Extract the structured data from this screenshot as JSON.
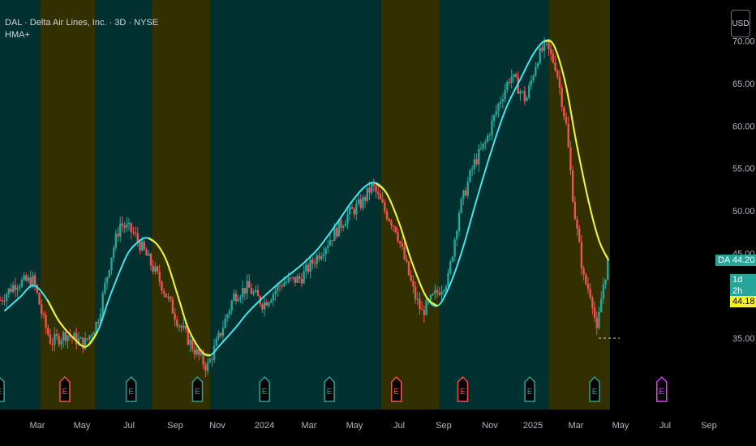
{
  "legend": {
    "title": "DAL · Delta Air Lines, Inc. · 3D · NYSE",
    "indicator": "HMA+"
  },
  "currency_button": "USD",
  "price_tags": {
    "symbol": "DAL",
    "last_price": "44.20",
    "countdown": "1d 2h",
    "hma_value": "44.18"
  },
  "colors": {
    "bg_teal": "#00302f",
    "bg_olive": "#333000",
    "candle_up": "#26a69a",
    "candle_down": "#ef5350",
    "hma_up": "#3fe6ee",
    "hma_down": "#f5f02a",
    "earnings_green": "#26a69a",
    "earnings_red": "#ef5350",
    "earnings_future": "#e040fb"
  },
  "chart_data": {
    "type": "candlestick",
    "title": "DAL · Delta Air Lines, Inc. · 3D · NYSE",
    "x_tick_labels": [
      "Mar",
      "May",
      "Jul",
      "Sep",
      "Nov",
      "2024",
      "Mar",
      "May",
      "Jul",
      "Sep",
      "Nov",
      "2025",
      "Mar",
      "May",
      "Jul",
      "Sep"
    ],
    "y_tick_labels": [
      "35.00",
      "40.00",
      "45.00",
      "50.00",
      "55.00",
      "60.00",
      "65.00",
      "70.00"
    ],
    "ylim": [
      29,
      72
    ],
    "xlim": [
      "2023-01-14",
      "2025-10-04"
    ],
    "last_close": 44.2,
    "hma_last": 44.18,
    "hma_series": {
      "name": "HMA+",
      "points": [
        [
          "2023-01-20",
          38.2
        ],
        [
          "2023-02-10",
          39.8
        ],
        [
          "2023-03-01",
          41.2
        ],
        [
          "2023-03-20",
          39.5
        ],
        [
          "2023-04-05",
          37.0
        ],
        [
          "2023-04-25",
          35.0
        ],
        [
          "2023-05-12",
          34.0
        ],
        [
          "2023-05-28",
          35.8
        ],
        [
          "2023-06-12",
          39.5
        ],
        [
          "2023-06-28",
          43.0
        ],
        [
          "2023-07-10",
          45.2
        ],
        [
          "2023-07-25",
          46.5
        ],
        [
          "2023-08-05",
          46.8
        ],
        [
          "2023-08-18",
          46.0
        ],
        [
          "2023-08-31",
          44.0
        ],
        [
          "2023-09-15",
          40.0
        ],
        [
          "2023-09-30",
          36.0
        ],
        [
          "2023-10-18",
          33.4
        ],
        [
          "2023-10-30",
          33.0
        ],
        [
          "2023-11-12",
          34.2
        ],
        [
          "2023-12-01",
          36.0
        ],
        [
          "2023-12-20",
          38.0
        ],
        [
          "2024-01-10",
          39.8
        ],
        [
          "2024-02-05",
          41.8
        ],
        [
          "2024-03-01",
          43.5
        ],
        [
          "2024-03-25",
          45.5
        ],
        [
          "2024-04-20",
          48.5
        ],
        [
          "2024-05-10",
          51.0
        ],
        [
          "2024-05-28",
          52.8
        ],
        [
          "2024-06-12",
          53.3
        ],
        [
          "2024-06-28",
          52.0
        ],
        [
          "2024-07-15",
          48.5
        ],
        [
          "2024-08-01",
          44.0
        ],
        [
          "2024-08-20",
          40.0
        ],
        [
          "2024-09-05",
          38.8
        ],
        [
          "2024-09-20",
          40.8
        ],
        [
          "2024-10-08",
          45.0
        ],
        [
          "2024-10-28",
          51.0
        ],
        [
          "2024-11-18",
          57.0
        ],
        [
          "2024-12-08",
          62.0
        ],
        [
          "2024-12-28",
          65.5
        ],
        [
          "2025-01-15",
          68.5
        ],
        [
          "2025-01-30",
          70.0
        ],
        [
          "2025-02-12",
          69.5
        ],
        [
          "2025-02-28",
          65.0
        ],
        [
          "2025-03-15",
          58.0
        ],
        [
          "2025-04-01",
          51.0
        ],
        [
          "2025-04-15",
          46.5
        ],
        [
          "2025-04-28",
          44.18
        ]
      ]
    },
    "shaded_regions": [
      {
        "from": "2023-01-14",
        "to": "2023-03-10",
        "trend": "up"
      },
      {
        "from": "2023-03-10",
        "to": "2023-05-25",
        "trend": "down"
      },
      {
        "from": "2023-05-25",
        "to": "2023-08-10",
        "trend": "up"
      },
      {
        "from": "2023-08-10",
        "to": "2023-10-30",
        "trend": "down"
      },
      {
        "from": "2023-10-30",
        "to": "2024-06-20",
        "trend": "up"
      },
      {
        "from": "2024-06-20",
        "to": "2024-09-08",
        "trend": "down"
      },
      {
        "from": "2024-09-08",
        "to": "2025-02-05",
        "trend": "up"
      },
      {
        "from": "2025-02-05",
        "to": "2025-04-30",
        "trend": "down"
      }
    ],
    "price_path_points": [
      [
        "2023-01-14",
        39.5
      ],
      [
        "2023-02-05",
        41.5
      ],
      [
        "2023-03-01",
        41.8
      ],
      [
        "2023-03-15",
        37.0
      ],
      [
        "2023-03-25",
        34.5
      ],
      [
        "2023-04-15",
        35.5
      ],
      [
        "2023-05-10",
        34.3
      ],
      [
        "2023-05-28",
        37.0
      ],
      [
        "2023-06-15",
        44.5
      ],
      [
        "2023-06-28",
        48.5
      ],
      [
        "2023-07-15",
        47.5
      ],
      [
        "2023-08-01",
        45.0
      ],
      [
        "2023-08-20",
        42.0
      ],
      [
        "2023-09-15",
        37.0
      ],
      [
        "2023-10-05",
        34.0
      ],
      [
        "2023-10-25",
        31.5
      ],
      [
        "2023-11-10",
        35.0
      ],
      [
        "2023-12-01",
        40.0
      ],
      [
        "2023-12-20",
        41.0
      ],
      [
        "2024-01-10",
        39.0
      ],
      [
        "2024-02-05",
        41.5
      ],
      [
        "2024-03-01",
        42.0
      ],
      [
        "2024-04-05",
        46.0
      ],
      [
        "2024-05-05",
        49.5
      ],
      [
        "2024-05-25",
        51.0
      ],
      [
        "2024-06-08",
        53.0
      ],
      [
        "2024-06-25",
        50.0
      ],
      [
        "2024-07-10",
        48.0
      ],
      [
        "2024-08-05",
        40.0
      ],
      [
        "2024-08-15",
        38.0
      ],
      [
        "2024-09-01",
        40.0
      ],
      [
        "2024-09-20",
        42.0
      ],
      [
        "2024-10-05",
        50.0
      ],
      [
        "2024-10-25",
        55.5
      ],
      [
        "2024-11-10",
        58.0
      ],
      [
        "2024-11-30",
        63.0
      ],
      [
        "2024-12-15",
        66.0
      ],
      [
        "2025-01-05",
        63.0
      ],
      [
        "2025-01-20",
        68.0
      ],
      [
        "2025-02-01",
        69.5
      ],
      [
        "2025-02-15",
        67.0
      ],
      [
        "2025-03-01",
        60.0
      ],
      [
        "2025-03-12",
        50.0
      ],
      [
        "2025-03-25",
        42.0
      ],
      [
        "2025-04-05",
        40.0
      ],
      [
        "2025-04-12",
        35.5
      ],
      [
        "2025-04-20",
        41.0
      ],
      [
        "2025-04-28",
        44.2
      ]
    ],
    "earnings_markers": [
      {
        "date": "2023-01-13",
        "result": "beat"
      },
      {
        "date": "2023-04-13",
        "result": "miss"
      },
      {
        "date": "2023-07-13",
        "result": "beat"
      },
      {
        "date": "2023-10-12",
        "result": "beat"
      },
      {
        "date": "2024-01-12",
        "result": "beat"
      },
      {
        "date": "2024-04-10",
        "result": "beat"
      },
      {
        "date": "2024-07-11",
        "result": "miss"
      },
      {
        "date": "2024-10-10",
        "result": "miss"
      },
      {
        "date": "2025-01-10",
        "result": "beat"
      },
      {
        "date": "2025-04-09",
        "result": "beat"
      },
      {
        "date": "2025-07-10",
        "result": "upcoming"
      }
    ],
    "earnings_marker_label": "E"
  }
}
